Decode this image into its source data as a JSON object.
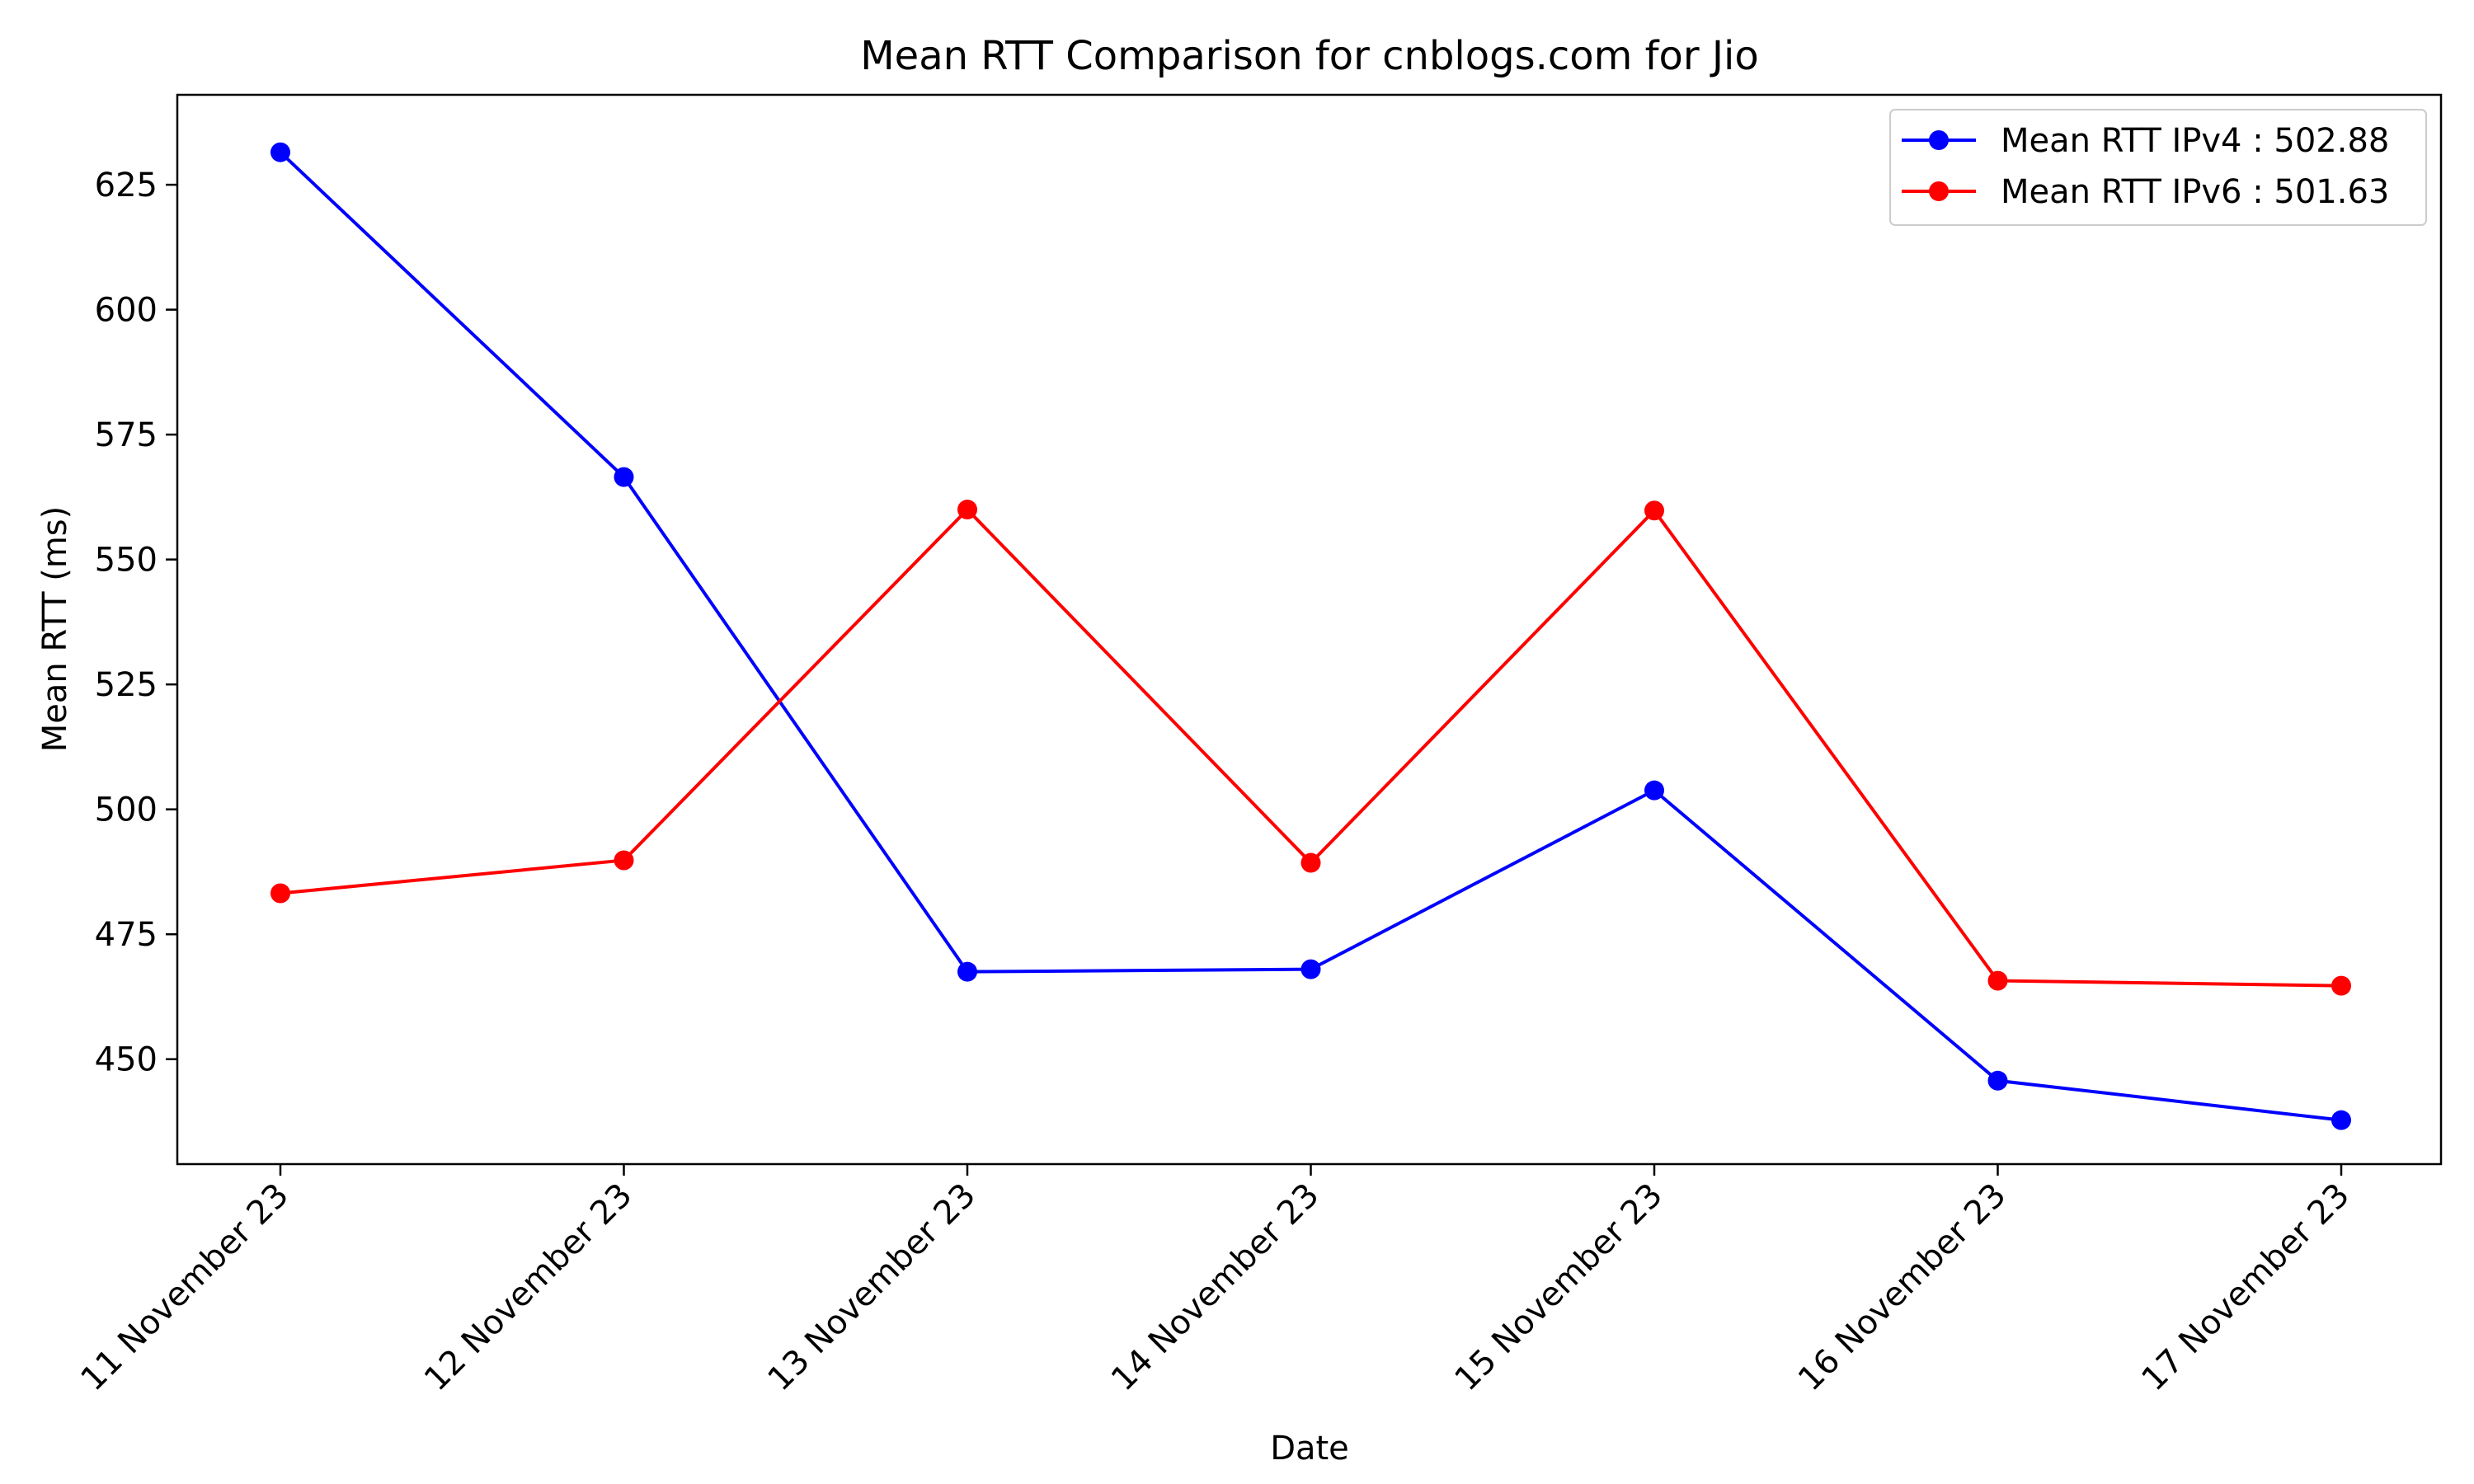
{
  "chart_data": {
    "type": "line",
    "title": "Mean RTT Comparison for cnblogs.com for Jio",
    "xlabel": "Date",
    "ylabel": "Mean RTT (ms)",
    "categories": [
      "11 November 23",
      "12 November 23",
      "13 November 23",
      "14 November 23",
      "15 November 23",
      "16 November 23",
      "17 November 23"
    ],
    "ylim": [
      429,
      643
    ],
    "yticks": [
      450,
      475,
      500,
      525,
      550,
      575,
      600,
      625
    ],
    "grid": false,
    "legend_position": "top-right",
    "series": [
      {
        "name": "Mean RTT IPv4 : 502.88",
        "color": "#0000ff",
        "marker": "circle",
        "values": [
          631.5,
          566.5,
          467.5,
          468.0,
          503.8,
          445.7,
          437.8
        ]
      },
      {
        "name": "Mean RTT IPv6 : 501.63",
        "color": "#ff0000",
        "marker": "circle",
        "values": [
          483.2,
          489.8,
          560.0,
          489.3,
          559.8,
          465.7,
          464.7
        ]
      }
    ]
  }
}
